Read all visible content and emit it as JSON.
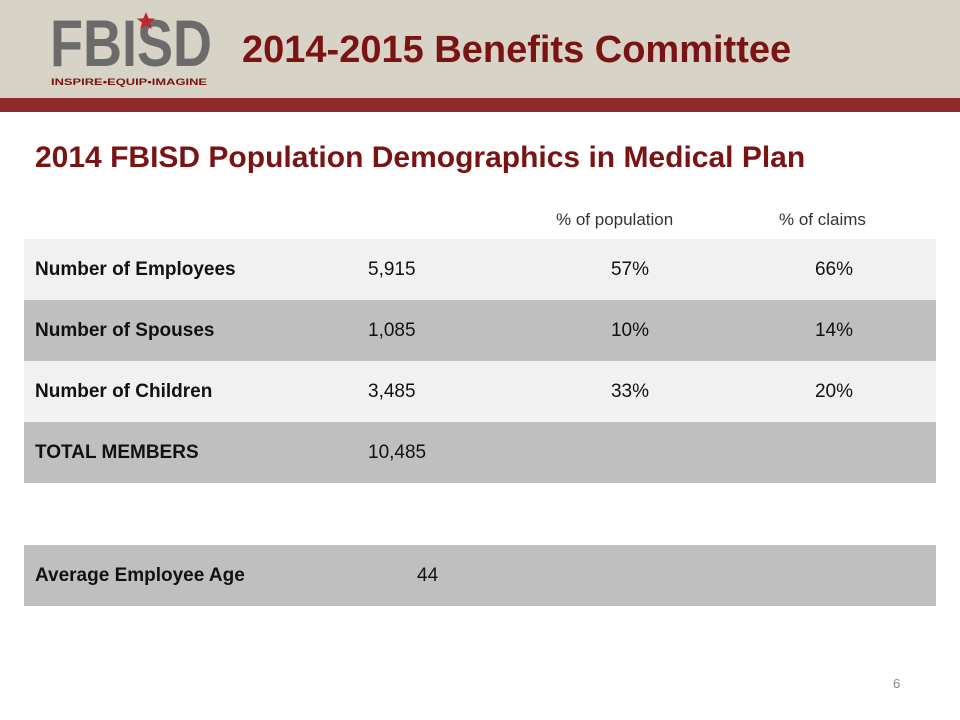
{
  "header": {
    "logo_text": "FBISD",
    "logo_tagline": "INSPIRE•EQUIP•IMAGINE",
    "title": "2014-2015 Benefits Committee"
  },
  "slide": {
    "subtitle": "2014 FBISD Population Demographics in Medical Plan",
    "page_number": "6"
  },
  "table": {
    "column_headers": [
      "% of population",
      "% of claims"
    ],
    "rows": [
      {
        "label": "Number of Employees",
        "count": "5,915",
        "pct_population": "57%",
        "pct_claims": "66%"
      },
      {
        "label": "Number of Spouses",
        "count": "1,085",
        "pct_population": "10%",
        "pct_claims": "14%"
      },
      {
        "label": "Number of Children",
        "count": "3,485",
        "pct_population": "33%",
        "pct_claims": "20%"
      },
      {
        "label": "TOTAL MEMBERS",
        "count": "10,485"
      }
    ],
    "age_row": {
      "label": "Average Employee Age",
      "value": "44"
    }
  },
  "colors": {
    "brand_red": "#7a1313",
    "header_band": "#d8d3c7",
    "header_rule": "#8f2a2a",
    "row_light": "#f1f1f1",
    "row_dark": "#bfbfbf"
  }
}
